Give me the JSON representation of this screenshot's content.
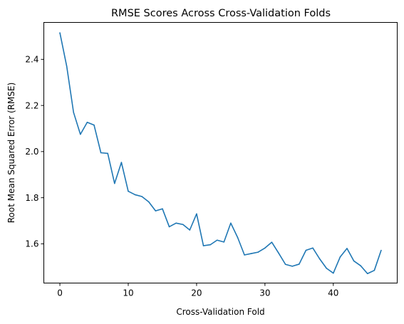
{
  "chart_data": {
    "type": "line",
    "title": "RMSE Scores Across Cross-Validation Folds",
    "xlabel": "Cross-Validation Fold",
    "ylabel": "Root Mean Squared Error (RMSE)",
    "xlim": [
      -2.35,
      49.35
    ],
    "ylim": [
      1.43,
      2.56
    ],
    "grid": false,
    "x_ticks": [
      0,
      10,
      20,
      30,
      40
    ],
    "y_ticks": [
      1.6,
      1.8,
      2.0,
      2.2,
      2.4
    ],
    "x_tick_labels": [
      "0",
      "10",
      "20",
      "30",
      "40"
    ],
    "y_tick_labels": [
      "1.6",
      "1.8",
      "2.0",
      "2.2",
      "2.4"
    ],
    "series": [
      {
        "color": "#1f77b4",
        "x": [
          0,
          1,
          2,
          3,
          4,
          5,
          6,
          7,
          8,
          9,
          10,
          11,
          12,
          13,
          14,
          15,
          16,
          17,
          18,
          19,
          20,
          21,
          22,
          23,
          24,
          25,
          26,
          27,
          28,
          29,
          30,
          31,
          32,
          33,
          34,
          35,
          36,
          37,
          38,
          39,
          40,
          41,
          42,
          43,
          44,
          45,
          46,
          47
        ],
        "values": [
          2.515,
          2.37,
          2.17,
          2.075,
          2.127,
          2.115,
          1.995,
          1.992,
          1.862,
          1.953,
          1.828,
          1.813,
          1.805,
          1.782,
          1.743,
          1.752,
          1.674,
          1.69,
          1.684,
          1.66,
          1.73,
          1.592,
          1.596,
          1.616,
          1.608,
          1.69,
          1.628,
          1.552,
          1.558,
          1.564,
          1.582,
          1.607,
          1.56,
          1.511,
          1.503,
          1.512,
          1.572,
          1.582,
          1.535,
          1.494,
          1.473,
          1.543,
          1.58,
          1.526,
          1.505,
          1.471,
          1.485,
          1.572
        ]
      }
    ]
  }
}
